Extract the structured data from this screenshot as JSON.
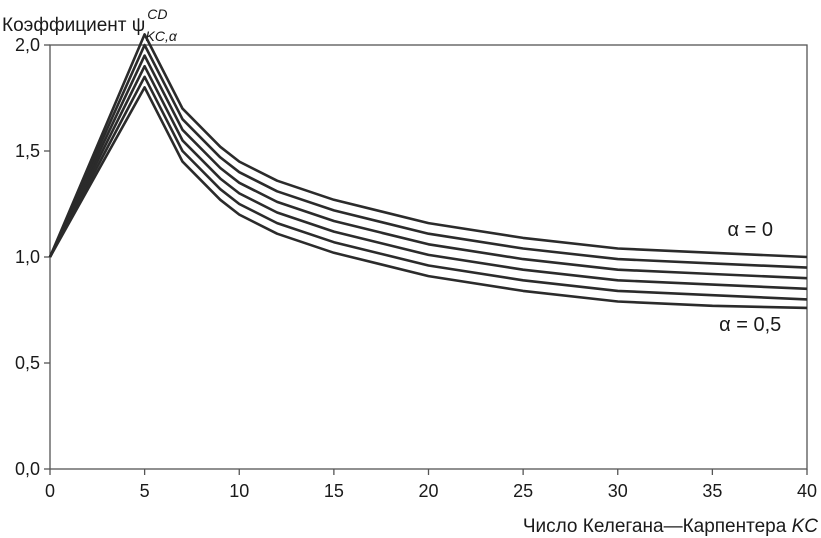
{
  "chart_data": {
    "type": "line",
    "ylabel_text": "Коэффициент ψ",
    "ylabel_sup": "CD",
    "ylabel_sub": "KC,α",
    "xlabel_text": "Число Келегана—Карпентера ",
    "xlabel_italic": "KC",
    "xlim": [
      0,
      40
    ],
    "ylim": [
      0,
      2.0
    ],
    "xticks": [
      0,
      5,
      10,
      15,
      20,
      25,
      30,
      35,
      40
    ],
    "yticks": [
      0.0,
      0.5,
      1.0,
      1.5,
      2.0
    ],
    "xtick_labels": [
      "0",
      "5",
      "10",
      "15",
      "20",
      "25",
      "30",
      "35",
      "40"
    ],
    "ytick_labels": [
      "0,0",
      "0,5",
      "1,0",
      "1,5",
      "2,0"
    ],
    "annotations": [
      {
        "text": "α = 0",
        "x": 37,
        "y": 1.1
      },
      {
        "text": "α = 0,5",
        "x": 37,
        "y": 0.65
      }
    ],
    "x": [
      0,
      5,
      7,
      9,
      10,
      12,
      15,
      20,
      25,
      30,
      35,
      40
    ],
    "series": [
      {
        "values": [
          1.0,
          2.05,
          1.7,
          1.52,
          1.45,
          1.36,
          1.27,
          1.16,
          1.09,
          1.04,
          1.02,
          1.0
        ]
      },
      {
        "values": [
          1.0,
          2.0,
          1.65,
          1.47,
          1.4,
          1.31,
          1.22,
          1.11,
          1.04,
          0.99,
          0.97,
          0.95
        ]
      },
      {
        "values": [
          1.0,
          1.95,
          1.6,
          1.42,
          1.35,
          1.26,
          1.17,
          1.06,
          0.99,
          0.94,
          0.92,
          0.9
        ]
      },
      {
        "values": [
          1.0,
          1.9,
          1.55,
          1.37,
          1.3,
          1.21,
          1.12,
          1.01,
          0.94,
          0.89,
          0.87,
          0.85
        ]
      },
      {
        "values": [
          1.0,
          1.85,
          1.5,
          1.32,
          1.25,
          1.16,
          1.07,
          0.96,
          0.89,
          0.84,
          0.82,
          0.8
        ]
      },
      {
        "values": [
          1.0,
          1.8,
          1.45,
          1.27,
          1.2,
          1.11,
          1.02,
          0.91,
          0.84,
          0.79,
          0.77,
          0.76
        ]
      }
    ],
    "line_color": "#2b2b2b",
    "grid": false
  }
}
